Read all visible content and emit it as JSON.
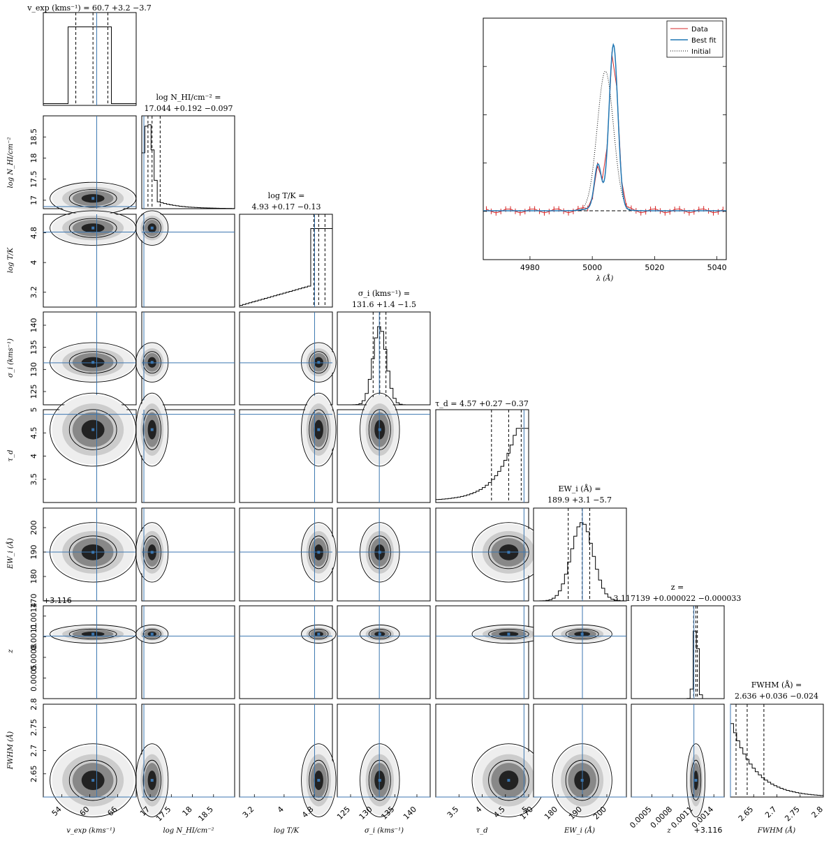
{
  "chart_data": {
    "type": "corner",
    "parameters": [
      {
        "key": "vexp",
        "label": "v_exp (kms^-1)",
        "title": "v_exp (kms^-1) = 60.7 +3.2 -3.7",
        "median": 60.7,
        "plus": 3.2,
        "minus": 3.7,
        "range": [
          50,
          70
        ],
        "ticks": [
          54,
          60,
          66
        ],
        "truth": 61.5,
        "hist": [
          0,
          0,
          0,
          0,
          0,
          0,
          0,
          0,
          0,
          0,
          0,
          0,
          0,
          0,
          0,
          0,
          0,
          0,
          0,
          0,
          0,
          0,
          0,
          0,
          0,
          0,
          0,
          0,
          0,
          0
        ],
        "hist_note": "flat-top"
      },
      {
        "key": "logNHI",
        "label": "log N_HI/cm^-2",
        "title": "log N_HI/cm^-2 = 17.044 +0.192 -0.097",
        "median": 17.044,
        "plus": 0.192,
        "minus": 0.097,
        "range": [
          16.8,
          19.0
        ],
        "ticks": [
          17.0,
          17.5,
          18.0,
          18.5
        ],
        "truth": 16.85
      },
      {
        "key": "logT",
        "label": "log T/K",
        "title": "log T/K = 4.93 +0.17 -0.13",
        "median": 4.93,
        "plus": 0.17,
        "minus": 0.13,
        "range": [
          2.8,
          5.3
        ],
        "ticks": [
          3.2,
          4.0,
          4.8
        ],
        "truth": 4.82
      },
      {
        "key": "sigma",
        "label": "σ_i (kms^-1)",
        "title": "σ_i (kms^-1) = 131.6 +1.4 -1.5",
        "median": 131.6,
        "plus": 1.4,
        "minus": 1.5,
        "range": [
          122,
          143
        ],
        "ticks": [
          125,
          130,
          135,
          140
        ],
        "truth": 131.5
      },
      {
        "key": "taud",
        "label": "τ_d",
        "title": "τ_d = 4.57 +0.27 -0.37",
        "median": 4.57,
        "plus": 0.27,
        "minus": 0.37,
        "range": [
          3.0,
          5.0
        ],
        "ticks": [
          3.5,
          4.0,
          4.5,
          5.0
        ],
        "truth": 4.9
      },
      {
        "key": "EW",
        "label": "EW_i (Å)",
        "title": "EW_i (Å) = 189.9 +3.1 -5.7",
        "median": 189.9,
        "plus": 3.1,
        "minus": 5.7,
        "range": [
          170,
          208
        ],
        "ticks": [
          170,
          180,
          190,
          200
        ],
        "truth": 190
      },
      {
        "key": "z",
        "label": "z",
        "title": "z = 3.117139 +0.000022 -0.000033",
        "median": 3.117139,
        "plus": 2.2e-05,
        "minus": 3.3e-05,
        "range": [
          0.0002,
          0.00155
        ],
        "ticks": [
          0.0005,
          0.0008,
          0.0011,
          0.0014
        ],
        "offset": "+3.116",
        "truth": 0.00111
      },
      {
        "key": "FWHM",
        "label": "FWHM (Å)",
        "title": "FWHM (Å) = 2.636 +0.036 -0.024",
        "median": 2.636,
        "plus": 0.036,
        "minus": 0.024,
        "range": [
          2.6,
          2.8
        ],
        "ticks": [
          2.65,
          2.7,
          2.75,
          2.8
        ],
        "truth": 2.6
      }
    ],
    "spectrum": {
      "type": "line",
      "xlabel": "λ (Å)",
      "xlim": [
        4965,
        5043
      ],
      "xticks": [
        4980,
        5000,
        5020,
        5040
      ],
      "legend": [
        "Data",
        "Best fit",
        "Initial"
      ],
      "legend_position": "top-right"
    }
  },
  "labels": {
    "t0": "v_exp (kms⁻¹) = 60.7 +3.2 −3.7",
    "t1a": "log N_HI/cm⁻² =",
    "t1b": "17.044 +0.192 −0.097",
    "t2a": "log T/K =",
    "t2b": "4.93 +0.17 −0.13",
    "t3a": "σ_i (kms⁻¹) =",
    "t3b": "131.6 +1.4 −1.5",
    "t4": "τ_d = 4.57 +0.27 −0.37",
    "t5a": "EW_i (Å) =",
    "t5b": "189.9 +3.1 −5.7",
    "t6a": "z =",
    "t6b": "3.117139 +0.000022 −0.000033",
    "t7a": "FWHM (Å) =",
    "t7b": "2.636 +0.036 −0.024",
    "xl0": "v_exp (kms⁻¹)",
    "xl1": "log N_HI/cm⁻²",
    "xl2": "log T/K",
    "xl3": "σ_i (kms⁻¹)",
    "xl4": "τ_d",
    "xl5": "EW_i (Å)",
    "xl6": "z",
    "xl6off": "+3.116",
    "xl7": "FWHM (Å)",
    "yl1": "log N_HI/cm⁻²",
    "yl2": "log T/K",
    "yl3": "σ_i (kms⁻¹)",
    "yl4": "τ_d",
    "yl5": "EW_i (Å)",
    "yl6": "z",
    "yl7": "FWHM (Å)",
    "zoffset": "+3.116",
    "spec_xlabel": "λ (Å)",
    "leg_data": "Data",
    "leg_best": "Best fit",
    "leg_init": "Initial"
  },
  "colors": {
    "truth": "#3b76b0",
    "data": "#d62728",
    "best": "#1f77b4",
    "initial": "#000000"
  }
}
